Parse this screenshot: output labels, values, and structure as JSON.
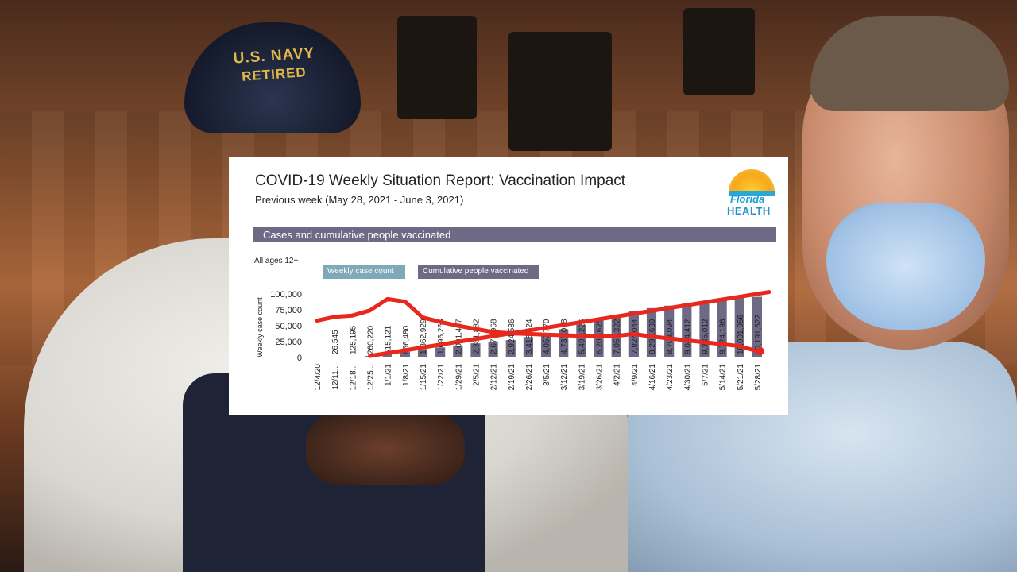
{
  "report": {
    "title": "COVID-19 Weekly Situation Report: Vaccination Impact",
    "subtitle": "Previous week (May 28, 2021 - June 3, 2021)",
    "section_label": "Cases and cumulative people vaccinated",
    "age_note": "All ages 12+",
    "logo": {
      "line1": "Florida",
      "line2": "HEALTH"
    }
  },
  "cap": {
    "line1": "U.S. NAVY",
    "line2": "RETIRED"
  },
  "chart_data": {
    "type": "bar",
    "categories": [
      "12/4/20",
      "12/11...",
      "12/18...",
      "12/25...",
      "1/1/21",
      "1/8/21",
      "1/15/21",
      "1/22/21",
      "1/29/21",
      "2/5/21",
      "2/12/21",
      "2/19/21",
      "2/26/21",
      "3/5/21",
      "3/12/21",
      "3/19/21",
      "3/26/21",
      "4/2/21",
      "4/9/21",
      "4/16/21",
      "4/23/21",
      "4/30/21",
      "5/7/21",
      "5/14/21",
      "5/21/21",
      "5/28/21"
    ],
    "series": [
      {
        "name": "Cumulative people vaccinated",
        "values": [
          0,
          26545,
          125195,
          260220,
          515121,
          966480,
          1362929,
          1696263,
          2001457,
          2381882,
          2674968,
          2924586,
          3418524,
          4057770,
          4737068,
          5499226,
          6201625,
          7057322,
          7824044,
          8293639,
          8703094,
          9044412,
          9335012,
          9724196,
          10001956,
          10191622
        ],
        "labels": [
          "",
          "26,545",
          "125,195",
          "260,220",
          "515,121",
          "966,480",
          "1,362,929",
          "1,696,263",
          "2,001,457",
          "2,381,882",
          "2,674,968",
          "2,924,586",
          "3,418,524",
          "4,057,770",
          "4,737,068",
          "5,499,226",
          "6,201,625",
          "7,057,322",
          "7,824,044",
          "8,293,639",
          "8,703,094",
          "9,044,412",
          "9,335,012",
          "9,724,196",
          "10,001,956",
          "10,191,622"
        ],
        "color": "#6e6a86"
      },
      {
        "name": "Weekly case count",
        "values": [
          58000,
          64000,
          66000,
          74000,
          92000,
          88000,
          63000,
          56000,
          50000,
          45000,
          40000,
          38000,
          37000,
          36000,
          35000,
          34000,
          33000,
          34000,
          37000,
          33000,
          30000,
          27000,
          24000,
          21000,
          18000,
          10000
        ],
        "color": "#7fa8b8"
      }
    ],
    "ylabel": "Weekly case count",
    "yticks": [
      "0",
      "25,000",
      "50,000",
      "75,000",
      "100,000"
    ],
    "ylim": [
      0,
      100000
    ],
    "annotation_color": "#e8281c"
  }
}
